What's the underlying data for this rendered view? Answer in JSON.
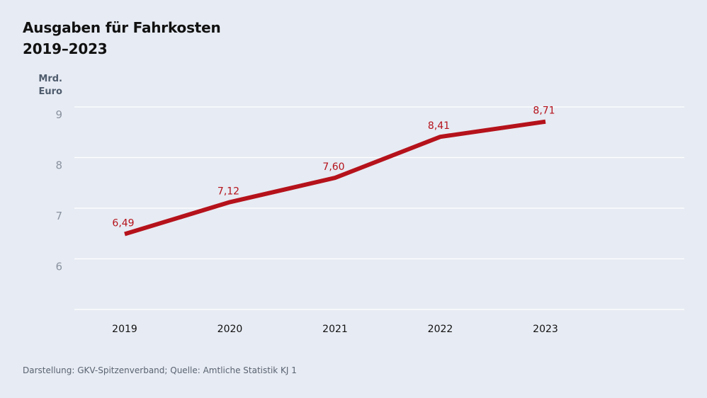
{
  "title": {
    "line1": "Ausgaben für Fahrkosten",
    "line2": "2019–2023"
  },
  "unit": {
    "line1": "Mrd.",
    "line2": "Euro"
  },
  "source": "Darstellung: GKV-Spitzenverband; Quelle: Amtliche Statistik KJ 1",
  "colors": {
    "background": "#e7ebf3",
    "line": "#b5121b",
    "gridline": "#ffffff",
    "tick_label": "#8a93a0"
  },
  "chart_data": {
    "type": "line",
    "title": "Ausgaben für Fahrkosten 2019–2023",
    "ylabel": "Mrd. Euro",
    "xlabel": "",
    "categories": [
      "2019",
      "2020",
      "2021",
      "2022",
      "2023"
    ],
    "series": [
      {
        "values": [
          6.49,
          7.12,
          7.6,
          8.41,
          8.71
        ],
        "labels": [
          "6,49",
          "7,12",
          "7,60",
          "8,41",
          "8,71"
        ]
      }
    ],
    "yticks": [
      6,
      7,
      8,
      9
    ],
    "ylim": [
      5,
      9
    ],
    "grid": true
  }
}
